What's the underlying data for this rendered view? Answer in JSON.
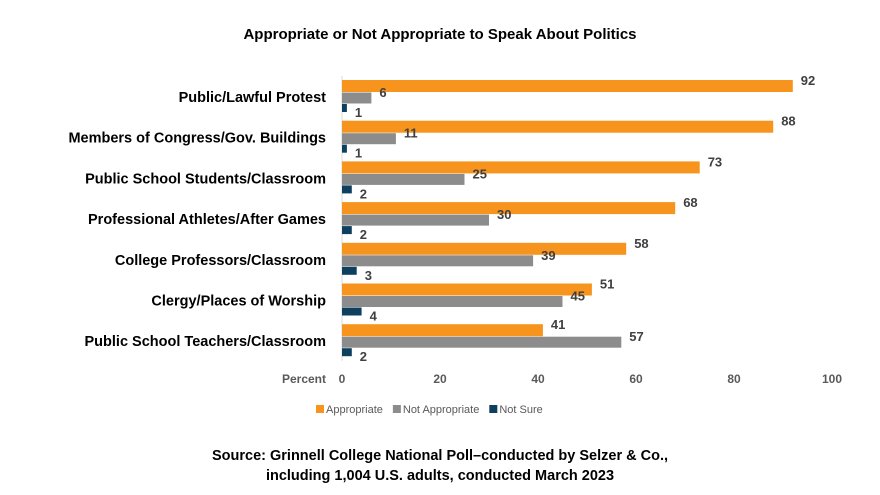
{
  "chart_data": {
    "type": "bar",
    "orientation": "horizontal",
    "title": "Appropriate or Not Appropriate to Speak About Politics",
    "xlabel": "Percent",
    "xlim": [
      0,
      100
    ],
    "xticks": [
      0,
      20,
      40,
      60,
      80,
      100
    ],
    "grid": false,
    "legend_position": "bottom",
    "categories": [
      "Public/Lawful Protest",
      "Members of Congress/Gov. Buildings",
      "Public School Students/Classroom",
      "Professional Athletes/After Games",
      "College Professors/Classroom",
      "Clergy/Places of Worship",
      "Public School Teachers/Classroom"
    ],
    "series": [
      {
        "name": "Appropriate",
        "color": "#F7941D",
        "values": [
          92,
          88,
          73,
          68,
          58,
          51,
          41
        ]
      },
      {
        "name": "Not Appropriate",
        "color": "#8C8C8C",
        "values": [
          6,
          11,
          25,
          30,
          39,
          45,
          57
        ]
      },
      {
        "name": "Not Sure",
        "color": "#0E3F5F",
        "values": [
          1,
          1,
          2,
          2,
          3,
          4,
          2
        ]
      }
    ]
  },
  "source": {
    "line1": "Source:  Grinnell College National Poll–conducted by Selzer & Co.,",
    "line2": "including 1,004 U.S. adults, conducted March 2023"
  }
}
